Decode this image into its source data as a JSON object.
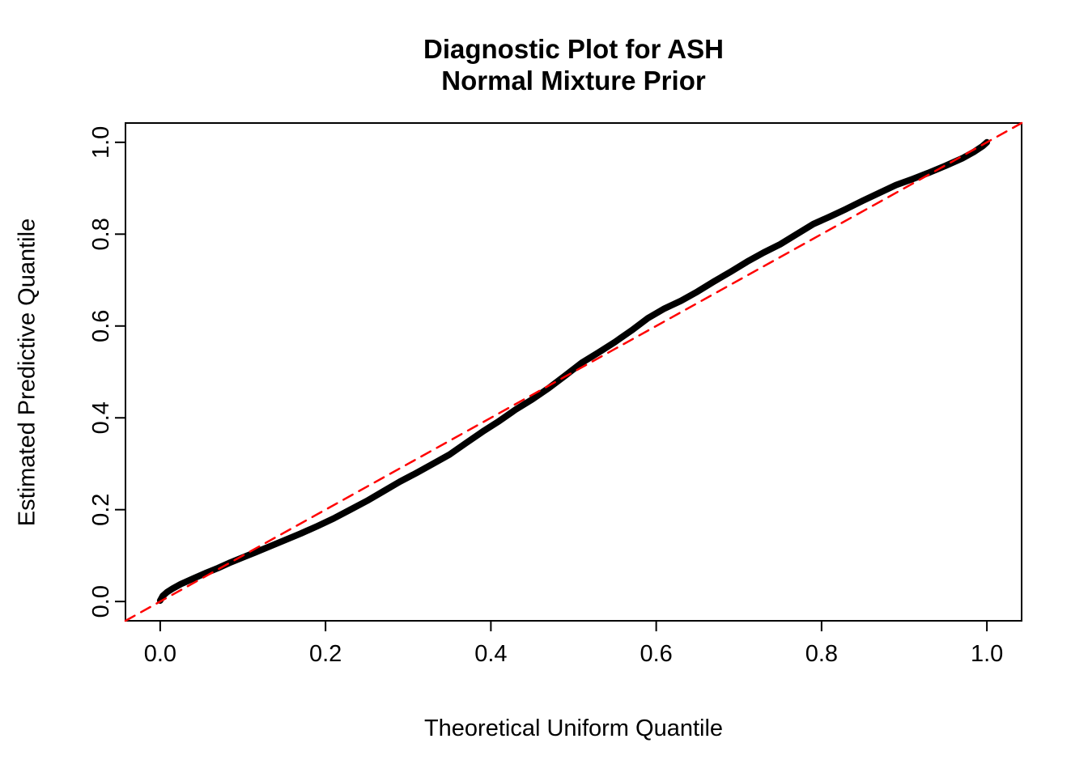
{
  "chart_data": {
    "type": "line",
    "title_lines": [
      "Diagnostic Plot for ASH",
      "Normal Mixture Prior"
    ],
    "xlabel": "Theoretical Uniform Quantile",
    "ylabel": "Estimated Predictive Quantile",
    "xlim": [
      -0.042,
      1.042
    ],
    "ylim": [
      -0.042,
      1.042
    ],
    "x_ticks": [
      0.0,
      0.2,
      0.4,
      0.6,
      0.8,
      1.0
    ],
    "y_ticks": [
      0.0,
      0.2,
      0.4,
      0.6,
      0.8,
      1.0
    ],
    "x_tick_labels": [
      "0.0",
      "0.2",
      "0.4",
      "0.6",
      "0.8",
      "1.0"
    ],
    "y_tick_labels": [
      "0.0",
      "0.2",
      "0.4",
      "0.6",
      "0.8",
      "1.0"
    ],
    "grid": false,
    "legend": "none",
    "box_color": "#000000",
    "background_color": "#ffffff",
    "series": [
      {
        "name": "estimated-predictive-quantiles",
        "color": "#000000",
        "style": "solid",
        "width": 8,
        "points": [
          [
            0.0,
            0.002
          ],
          [
            0.003,
            0.012
          ],
          [
            0.008,
            0.02
          ],
          [
            0.015,
            0.028
          ],
          [
            0.025,
            0.038
          ],
          [
            0.04,
            0.05
          ],
          [
            0.055,
            0.062
          ],
          [
            0.07,
            0.073
          ],
          [
            0.085,
            0.085
          ],
          [
            0.1,
            0.096
          ],
          [
            0.115,
            0.107
          ],
          [
            0.13,
            0.118
          ],
          [
            0.15,
            0.133
          ],
          [
            0.17,
            0.148
          ],
          [
            0.19,
            0.164
          ],
          [
            0.21,
            0.181
          ],
          [
            0.23,
            0.2
          ],
          [
            0.25,
            0.219
          ],
          [
            0.27,
            0.24
          ],
          [
            0.29,
            0.261
          ],
          [
            0.31,
            0.28
          ],
          [
            0.33,
            0.3
          ],
          [
            0.35,
            0.32
          ],
          [
            0.37,
            0.345
          ],
          [
            0.39,
            0.37
          ],
          [
            0.41,
            0.393
          ],
          [
            0.43,
            0.418
          ],
          [
            0.45,
            0.44
          ],
          [
            0.47,
            0.465
          ],
          [
            0.49,
            0.492
          ],
          [
            0.51,
            0.52
          ],
          [
            0.53,
            0.542
          ],
          [
            0.55,
            0.565
          ],
          [
            0.57,
            0.59
          ],
          [
            0.59,
            0.617
          ],
          [
            0.61,
            0.638
          ],
          [
            0.63,
            0.655
          ],
          [
            0.65,
            0.675
          ],
          [
            0.67,
            0.697
          ],
          [
            0.69,
            0.718
          ],
          [
            0.71,
            0.74
          ],
          [
            0.73,
            0.76
          ],
          [
            0.75,
            0.778
          ],
          [
            0.77,
            0.8
          ],
          [
            0.79,
            0.822
          ],
          [
            0.81,
            0.838
          ],
          [
            0.83,
            0.855
          ],
          [
            0.85,
            0.873
          ],
          [
            0.87,
            0.89
          ],
          [
            0.89,
            0.907
          ],
          [
            0.91,
            0.92
          ],
          [
            0.93,
            0.934
          ],
          [
            0.95,
            0.949
          ],
          [
            0.97,
            0.965
          ],
          [
            0.985,
            0.98
          ],
          [
            0.995,
            0.992
          ],
          [
            1.0,
            1.0
          ]
        ]
      },
      {
        "name": "reference-diagonal",
        "color": "#ff0000",
        "style": "dashed",
        "width": 2.5,
        "points": [
          [
            -0.042,
            -0.042
          ],
          [
            1.042,
            1.042
          ]
        ]
      }
    ]
  }
}
